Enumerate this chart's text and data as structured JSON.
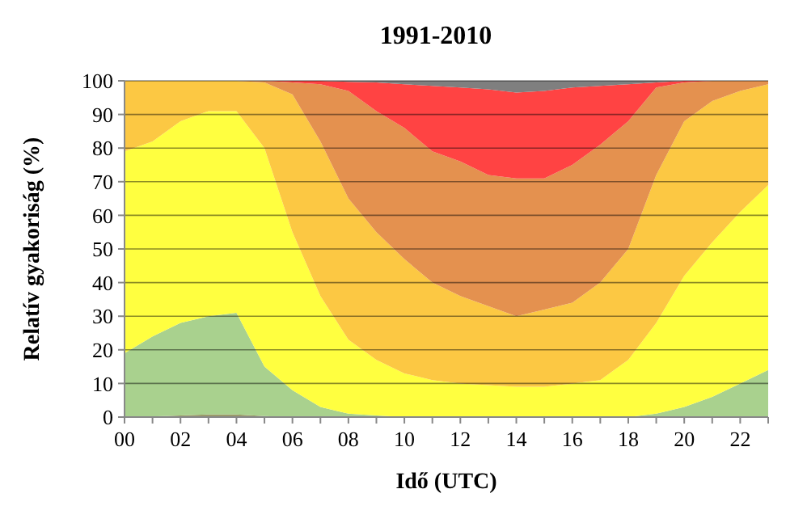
{
  "chart_data": {
    "type": "area",
    "stacked": true,
    "title": "1991-2010",
    "xlabel": "Idő (UTC)",
    "ylabel": "Relatív gyakoriság (%)",
    "categories": [
      "00",
      null,
      "02",
      null,
      "04",
      null,
      "06",
      null,
      "08",
      null,
      "10",
      null,
      "12",
      null,
      "14",
      null,
      "16",
      null,
      "18",
      null,
      "20",
      null,
      "22",
      null
    ],
    "series": [
      {
        "color": "#9a9a6a",
        "values": [
          0,
          0.2,
          0.5,
          0.8,
          0.8,
          0.3,
          0,
          0,
          0,
          0,
          0,
          0,
          0,
          0,
          0,
          0,
          0,
          0,
          0,
          0,
          0,
          0,
          0,
          0
        ]
      },
      {
        "color": "#a9d18e",
        "values": [
          19,
          23.8,
          27.5,
          29.2,
          30.2,
          14.7,
          8,
          3,
          1,
          0.5,
          0,
          0,
          0,
          0,
          0,
          0,
          0,
          0,
          0,
          1,
          3,
          6,
          10,
          14
        ]
      },
      {
        "color": "#ffff40",
        "values": [
          60,
          58,
          60,
          61,
          60,
          65,
          47,
          33,
          22,
          16.5,
          13,
          11,
          10,
          9.5,
          9,
          9,
          10,
          11,
          17,
          27,
          39,
          46,
          51,
          55
        ]
      },
      {
        "color": "#fcc843",
        "values": [
          21,
          18,
          12,
          9,
          9,
          19.5,
          41,
          46,
          42,
          38,
          34,
          29,
          26,
          23.5,
          21,
          23,
          24,
          29,
          33,
          44,
          46,
          42,
          36,
          30
        ]
      },
      {
        "color": "#e4914f",
        "values": [
          0,
          0,
          0,
          0,
          0,
          0.5,
          3.5,
          17,
          32,
          36,
          39,
          39,
          40,
          39,
          41,
          39,
          41,
          41,
          38,
          26,
          11.5,
          6,
          3,
          1
        ]
      },
      {
        "color": "#ff4343",
        "values": [
          0,
          0,
          0,
          0,
          0,
          0,
          0.5,
          1,
          2.7,
          8.5,
          13,
          19.5,
          22,
          25.5,
          25.5,
          26,
          23,
          17.5,
          11,
          1.5,
          0.5,
          0,
          0,
          0
        ]
      },
      {
        "color": "#7f7f7f",
        "values": [
          0,
          0,
          0,
          0,
          0,
          0,
          0,
          0,
          0.3,
          0.5,
          1,
          1.5,
          2,
          2.5,
          3.5,
          3,
          2,
          1.5,
          1,
          0.5,
          0,
          0,
          0,
          0
        ]
      }
    ],
    "ylim": [
      0,
      100
    ],
    "yticks": [
      0,
      10,
      20,
      30,
      40,
      50,
      60,
      70,
      80,
      90,
      100
    ],
    "grid": "y"
  }
}
